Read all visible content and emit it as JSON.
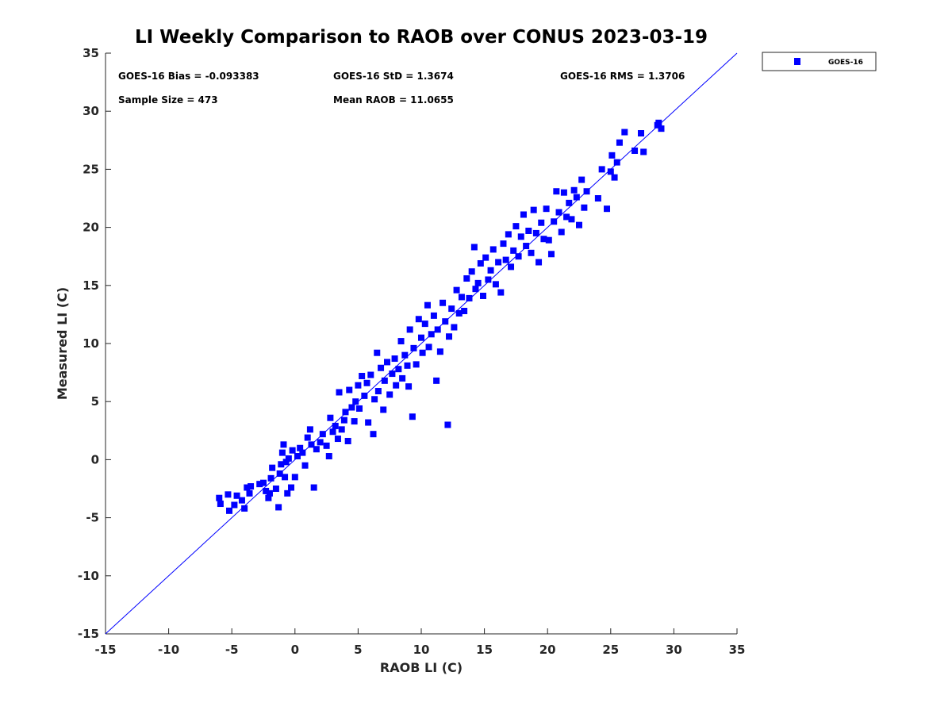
{
  "chart_data": {
    "type": "scatter",
    "title": "LI Weekly Comparison to RAOB over CONUS 2023-03-19",
    "xlabel": "RAOB LI (C)",
    "ylabel": "Measured LI (C)",
    "xlim": [
      -15,
      35
    ],
    "ylim": [
      -15,
      35
    ],
    "xticks": [
      -15,
      -10,
      -5,
      0,
      5,
      10,
      15,
      20,
      25,
      30,
      35
    ],
    "yticks": [
      -15,
      -10,
      -5,
      0,
      5,
      10,
      15,
      20,
      25,
      30,
      35
    ],
    "grid": false,
    "legend": {
      "placement": "top-right-outside",
      "entries": [
        "GOES-16"
      ]
    },
    "reference_line": {
      "name": "1:1",
      "from": [
        -15,
        -15
      ],
      "to": [
        35,
        35
      ]
    },
    "annotations": [
      "GOES-16 Bias = -0.093383",
      "GOES-16 StD = 1.3674",
      "GOES-16 RMS = 1.3706",
      "Sample Size = 473",
      "Mean RAOB = 11.0655"
    ],
    "colors": {
      "series": "#0000ff",
      "line": "#0000ff"
    },
    "series": [
      {
        "name": "GOES-16",
        "points": [
          [
            -6,
            -3.3
          ],
          [
            -5.9,
            -3.8
          ],
          [
            -5.3,
            -3
          ],
          [
            -5.2,
            -4.4
          ],
          [
            -4.8,
            -3.9
          ],
          [
            -4.6,
            -3.1
          ],
          [
            -4.2,
            -3.5
          ],
          [
            -4,
            -4.2
          ],
          [
            -3.8,
            -2.4
          ],
          [
            -3.6,
            -2.9
          ],
          [
            -3.5,
            -2.3
          ],
          [
            -2.8,
            -2.1
          ],
          [
            -2.5,
            -2
          ],
          [
            -2.3,
            -2.7
          ],
          [
            -2.1,
            -3.3
          ],
          [
            -2,
            -2.9
          ],
          [
            -1.9,
            -1.6
          ],
          [
            -1.8,
            -0.7
          ],
          [
            -1.5,
            -2.5
          ],
          [
            -1.3,
            -4.1
          ],
          [
            -1.2,
            -1.2
          ],
          [
            -1.1,
            -0.4
          ],
          [
            -1,
            0.6
          ],
          [
            -0.9,
            1.3
          ],
          [
            -0.8,
            -1.5
          ],
          [
            -0.7,
            -0.2
          ],
          [
            -0.6,
            -2.9
          ],
          [
            -0.5,
            0.1
          ],
          [
            -0.3,
            -2.4
          ],
          [
            -0.2,
            0.8
          ],
          [
            0,
            -1.5
          ],
          [
            0.2,
            0.3
          ],
          [
            0.4,
            1
          ],
          [
            0.6,
            0.6
          ],
          [
            0.8,
            -0.5
          ],
          [
            1,
            1.9
          ],
          [
            1.2,
            2.6
          ],
          [
            1.3,
            1.3
          ],
          [
            1.5,
            -2.4
          ],
          [
            1.7,
            0.9
          ],
          [
            2,
            1.5
          ],
          [
            2.2,
            2.2
          ],
          [
            2.5,
            1.2
          ],
          [
            2.7,
            0.3
          ],
          [
            2.8,
            3.6
          ],
          [
            3,
            2.4
          ],
          [
            3.2,
            2.9
          ],
          [
            3.4,
            1.8
          ],
          [
            3.5,
            5.8
          ],
          [
            3.7,
            2.6
          ],
          [
            3.9,
            3.4
          ],
          [
            4,
            4.1
          ],
          [
            4.2,
            1.6
          ],
          [
            4.3,
            6
          ],
          [
            4.5,
            4.5
          ],
          [
            4.7,
            3.3
          ],
          [
            4.8,
            5
          ],
          [
            5,
            6.4
          ],
          [
            5.1,
            4.4
          ],
          [
            5.3,
            7.2
          ],
          [
            5.5,
            5.5
          ],
          [
            5.7,
            6.6
          ],
          [
            5.8,
            3.2
          ],
          [
            6,
            7.3
          ],
          [
            6.2,
            2.2
          ],
          [
            6.3,
            5.2
          ],
          [
            6.5,
            9.2
          ],
          [
            6.6,
            5.9
          ],
          [
            6.8,
            7.9
          ],
          [
            7,
            4.3
          ],
          [
            7.1,
            6.8
          ],
          [
            7.3,
            8.4
          ],
          [
            7.5,
            5.6
          ],
          [
            7.7,
            7.4
          ],
          [
            7.9,
            8.7
          ],
          [
            8,
            6.4
          ],
          [
            8.2,
            7.8
          ],
          [
            8.4,
            10.2
          ],
          [
            8.5,
            7
          ],
          [
            8.7,
            9
          ],
          [
            8.9,
            8.1
          ],
          [
            9,
            6.3
          ],
          [
            9.1,
            11.2
          ],
          [
            9.3,
            3.7
          ],
          [
            9.4,
            9.6
          ],
          [
            9.6,
            8.2
          ],
          [
            9.8,
            12.1
          ],
          [
            10,
            10.5
          ],
          [
            10.1,
            9.2
          ],
          [
            10.3,
            11.7
          ],
          [
            10.5,
            13.3
          ],
          [
            10.6,
            9.7
          ],
          [
            10.8,
            10.8
          ],
          [
            11,
            12.4
          ],
          [
            11.2,
            6.8
          ],
          [
            11.3,
            11.2
          ],
          [
            11.5,
            9.3
          ],
          [
            11.7,
            13.5
          ],
          [
            11.9,
            11.9
          ],
          [
            12.1,
            3
          ],
          [
            12.2,
            10.6
          ],
          [
            12.4,
            13
          ],
          [
            12.6,
            11.4
          ],
          [
            12.8,
            14.6
          ],
          [
            13,
            12.6
          ],
          [
            13.2,
            14
          ],
          [
            13.4,
            12.8
          ],
          [
            13.6,
            15.6
          ],
          [
            13.8,
            13.9
          ],
          [
            14,
            16.2
          ],
          [
            14.2,
            18.3
          ],
          [
            14.3,
            14.7
          ],
          [
            14.5,
            15.2
          ],
          [
            14.7,
            16.9
          ],
          [
            14.9,
            14.1
          ],
          [
            15.1,
            17.4
          ],
          [
            15.3,
            15.5
          ],
          [
            15.5,
            16.3
          ],
          [
            15.7,
            18.1
          ],
          [
            15.9,
            15.1
          ],
          [
            16.1,
            17
          ],
          [
            16.3,
            14.4
          ],
          [
            16.5,
            18.6
          ],
          [
            16.7,
            17.2
          ],
          [
            16.9,
            19.4
          ],
          [
            17.1,
            16.6
          ],
          [
            17.3,
            18
          ],
          [
            17.5,
            20.1
          ],
          [
            17.7,
            17.5
          ],
          [
            17.9,
            19.2
          ],
          [
            18.1,
            21.1
          ],
          [
            18.3,
            18.4
          ],
          [
            18.5,
            19.7
          ],
          [
            18.7,
            17.8
          ],
          [
            18.9,
            21.5
          ],
          [
            19.1,
            19.5
          ],
          [
            19.3,
            17
          ],
          [
            19.5,
            20.4
          ],
          [
            19.7,
            19
          ],
          [
            19.9,
            21.6
          ],
          [
            20.1,
            18.9
          ],
          [
            20.3,
            17.7
          ],
          [
            20.5,
            20.5
          ],
          [
            20.7,
            23.1
          ],
          [
            20.9,
            21.3
          ],
          [
            21.1,
            19.6
          ],
          [
            21.3,
            23
          ],
          [
            21.5,
            20.9
          ],
          [
            21.7,
            22.1
          ],
          [
            21.9,
            20.7
          ],
          [
            22.1,
            23.2
          ],
          [
            22.3,
            22.6
          ],
          [
            22.5,
            20.2
          ],
          [
            22.7,
            24.1
          ],
          [
            22.9,
            21.7
          ],
          [
            23.1,
            23.1
          ],
          [
            24,
            22.5
          ],
          [
            24.3,
            25
          ],
          [
            24.7,
            21.6
          ],
          [
            25,
            24.8
          ],
          [
            25.1,
            26.2
          ],
          [
            25.3,
            24.3
          ],
          [
            25.5,
            25.6
          ],
          [
            25.7,
            27.3
          ],
          [
            26.1,
            28.2
          ],
          [
            26.9,
            26.6
          ],
          [
            27.4,
            28.1
          ],
          [
            27.6,
            26.5
          ],
          [
            28.7,
            28.8
          ],
          [
            29,
            28.5
          ],
          [
            28.8,
            29
          ]
        ]
      }
    ]
  }
}
